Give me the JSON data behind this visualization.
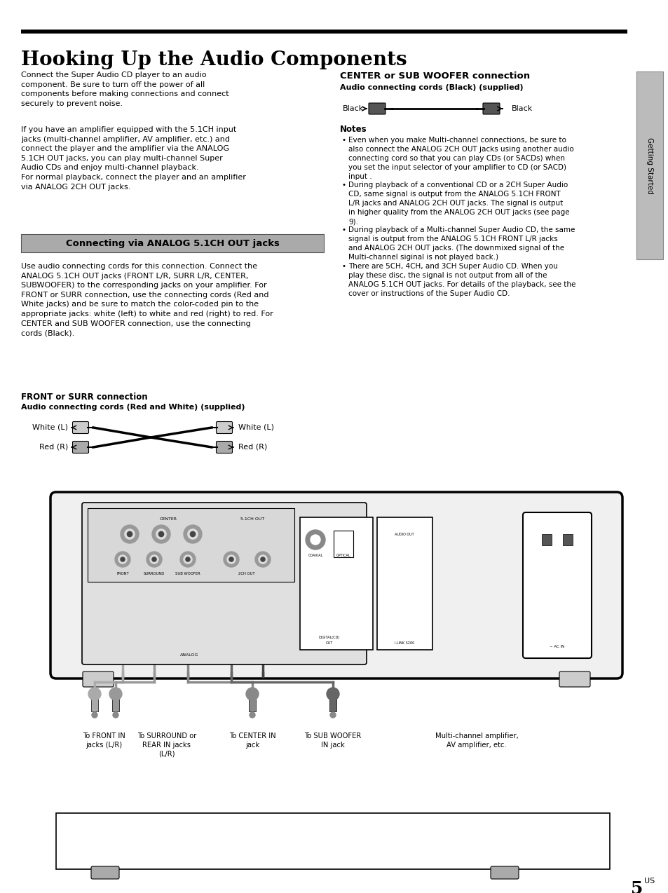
{
  "title": "Hooking Up the Audio Components",
  "page_num_big": "5",
  "page_num_sup": "US",
  "sidebar_text": "Getting Started",
  "section_box_text": "Connecting via ANALOG 5.1CH OUT jacks",
  "left_col_para1": "Connect the Super Audio CD player to an audio\ncomponent. Be sure to turn off the power of all\ncomponents before making connections and connect\nsecurely to prevent noise.",
  "left_col_para2": "If you have an amplifier equipped with the 5.1CH input\njacks (multi-channel amplifier, AV amplifier, etc.) and\nconnect the player and the amplifier via the ANALOG\n5.1CH OUT jacks, you can play multi-channel Super\nAudio CDs and enjoy multi-channel playback.\nFor normal playback, connect the player and an amplifier\nvia ANALOG 2CH OUT jacks.",
  "left_col_para3": "Use audio connecting cords for this connection. Connect the\nANALOG 5.1CH OUT jacks (FRONT L/R, SURR L/R, CENTER,\nSUBWOOFER) to the corresponding jacks on your amplifier. For\nFRONT or SURR connection, use the connecting cords (Red and\nWhite jacks) and be sure to match the color-coded pin to the\nappropriate jacks: white (left) to white and red (right) to red. For\nCENTER and SUB WOOFER connection, use the connecting\ncords (Black).",
  "right_col_title1": "CENTER or SUB WOOFER connection",
  "right_col_sub1": "Audio connecting cords (Black) (supplied)",
  "notes_title": "Notes",
  "note1": "Even when you make Multi-channel connections, be sure to\nalso connect the ANALOG 2CH OUT jacks using another audio\nconnecting cord so that you can play CDs (or SACDs) when\nyou set the input selector of your amplifier to CD (or SACD)\ninput .",
  "note2": "During playback of a conventional CD or a 2CH Super Audio\nCD, same signal is output from the ANALOG 5.1CH FRONT\nL/R jacks and ANALOG 2CH OUT jacks. The signal is output\nin higher quality from the ANALOG 2CH OUT jacks (see page\n9).",
  "note3": "During playback of a Multi-channel Super Audio CD, the same\nsignal is output from the ANALOG 5.1CH FRONT L/R jacks\nand ANALOG 2CH OUT jacks. (The downmixed signal of the\nMulti-channel siginal is not played back.)",
  "note4": "There are 5CH, 4CH, and 3CH Super Audio CD. When you\nplay these disc, the signal is not output from all of the\nANALOG 5.1CH OUT jacks. For details of the playback, see the\ncover or instructions of the Super Audio CD.",
  "front_surr_title": "FRONT or SURR connection",
  "front_surr_sub": "Audio connecting cords (Red and White) (supplied)",
  "label_white_l": "White (L)",
  "label_red_r": "Red (R)",
  "label_black_left": "Black",
  "label_black_right": "Black",
  "caption1": "To FRONT IN\njacks (L/R)",
  "caption2": "To SURROUND or\nREAR IN jacks\n(L/R)",
  "caption3": "To CENTER IN\njack",
  "caption4": "To SUB WOOFER\nIN jack",
  "caption5": "Multi-channel amplifier,\nAV amplifier, etc.",
  "bg_color": "#ffffff",
  "text_color": "#000000"
}
